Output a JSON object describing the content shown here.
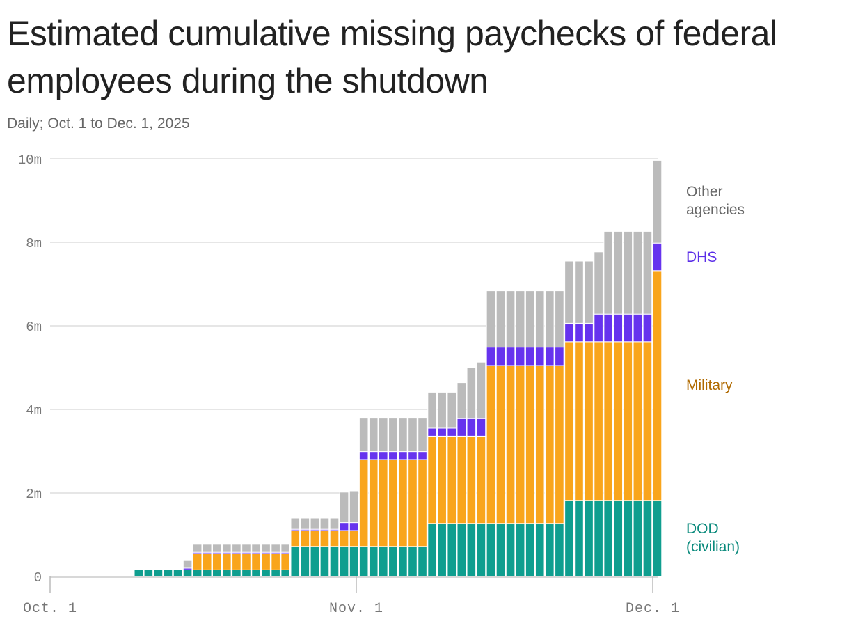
{
  "header": {
    "title": "Estimated cumulative missing paychecks of federal employees during the shutdown",
    "subtitle": "Daily; Oct. 1 to Dec. 1, 2025"
  },
  "chart_data": {
    "type": "bar",
    "stacked": true,
    "title": "Estimated cumulative missing paychecks of federal employees during the shutdown",
    "subtitle": "Daily; Oct. 1 to Dec. 1, 2025",
    "xlabel": "",
    "ylabel": "",
    "ylim": [
      0,
      10000000
    ],
    "yticks": [
      {
        "value": 0,
        "label": "0"
      },
      {
        "value": 2000000,
        "label": "2m"
      },
      {
        "value": 4000000,
        "label": "4m"
      },
      {
        "value": 6000000,
        "label": "6m"
      },
      {
        "value": 8000000,
        "label": "8m"
      },
      {
        "value": 10000000,
        "label": "10m"
      }
    ],
    "xticks": [
      {
        "day": 1,
        "label": "Oct. 1"
      },
      {
        "day": 32,
        "label": "Nov. 1"
      },
      {
        "day": 62,
        "label": "Dec. 1"
      }
    ],
    "grid": true,
    "legend": "right, direct labels",
    "x": [
      1,
      2,
      3,
      4,
      5,
      6,
      7,
      8,
      9,
      10,
      11,
      12,
      13,
      14,
      15,
      16,
      17,
      18,
      19,
      20,
      21,
      22,
      23,
      24,
      25,
      26,
      27,
      28,
      29,
      30,
      31,
      32,
      33,
      34,
      35,
      36,
      37,
      38,
      39,
      40,
      41,
      42,
      43,
      44,
      45,
      46,
      47,
      48,
      49,
      50,
      51,
      52,
      53,
      54,
      55,
      56,
      57,
      58,
      58,
      59,
      60,
      61,
      62
    ],
    "series": [
      {
        "name": "DOD (civilian)",
        "color": "#0f9e8f",
        "values": [
          0,
          0,
          0,
          0,
          0,
          0,
          0,
          0,
          0,
          160000,
          160000,
          160000,
          160000,
          160000,
          160000,
          160000,
          160000,
          160000,
          160000,
          160000,
          160000,
          160000,
          160000,
          160000,
          160000,
          720000,
          720000,
          720000,
          720000,
          720000,
          720000,
          720000,
          720000,
          720000,
          720000,
          720000,
          720000,
          720000,
          720000,
          1270000,
          1270000,
          1270000,
          1270000,
          1270000,
          1270000,
          1270000,
          1270000,
          1270000,
          1270000,
          1270000,
          1270000,
          1270000,
          1270000,
          1820000,
          1820000,
          1820000,
          1820000,
          1820000,
          1820000,
          1820000,
          1820000,
          1820000,
          1820000
        ]
      },
      {
        "name": "Military",
        "color": "#f9a51c",
        "values": [
          0,
          0,
          0,
          0,
          0,
          0,
          0,
          0,
          0,
          0,
          0,
          0,
          0,
          0,
          0,
          390000,
          390000,
          390000,
          390000,
          390000,
          390000,
          390000,
          390000,
          390000,
          390000,
          380000,
          380000,
          380000,
          380000,
          380000,
          380000,
          380000,
          2080000,
          2080000,
          2080000,
          2080000,
          2080000,
          2080000,
          2080000,
          2090000,
          2090000,
          2090000,
          2090000,
          2090000,
          2090000,
          3780000,
          3780000,
          3780000,
          3780000,
          3780000,
          3780000,
          3780000,
          3780000,
          3800000,
          3800000,
          3800000,
          3800000,
          3800000,
          3800000,
          3800000,
          3800000,
          3800000,
          5500000
        ]
      },
      {
        "name": "DHS",
        "color": "#6633ee",
        "values": [
          0,
          0,
          0,
          0,
          0,
          0,
          0,
          0,
          0,
          0,
          0,
          0,
          0,
          0,
          40000,
          30000,
          30000,
          30000,
          30000,
          30000,
          30000,
          30000,
          30000,
          30000,
          30000,
          30000,
          30000,
          30000,
          30000,
          30000,
          190000,
          190000,
          190000,
          190000,
          190000,
          190000,
          190000,
          190000,
          190000,
          190000,
          190000,
          190000,
          420000,
          420000,
          420000,
          440000,
          440000,
          440000,
          440000,
          440000,
          440000,
          440000,
          440000,
          440000,
          440000,
          440000,
          660000,
          660000,
          660000,
          660000,
          660000,
          660000,
          660000
        ]
      },
      {
        "name": "Other agencies",
        "color": "#bbbbbb",
        "values": [
          0,
          0,
          0,
          0,
          0,
          0,
          0,
          0,
          0,
          0,
          0,
          0,
          0,
          0,
          180000,
          190000,
          190000,
          190000,
          190000,
          190000,
          190000,
          190000,
          190000,
          190000,
          190000,
          270000,
          270000,
          270000,
          270000,
          270000,
          730000,
          760000,
          800000,
          800000,
          800000,
          800000,
          800000,
          800000,
          800000,
          860000,
          860000,
          860000,
          860000,
          1220000,
          1350000,
          1350000,
          1350000,
          1350000,
          1350000,
          1350000,
          1350000,
          1350000,
          1350000,
          1490000,
          1490000,
          1490000,
          1490000,
          1980000,
          1980000,
          1980000,
          1980000,
          1980000,
          1980000
        ]
      }
    ]
  },
  "labels": {
    "other_line1": "Other",
    "other_line2": "agencies",
    "dhs": "DHS",
    "military": "Military",
    "dod_line1": "DOD",
    "dod_line2": "(civilian)"
  }
}
